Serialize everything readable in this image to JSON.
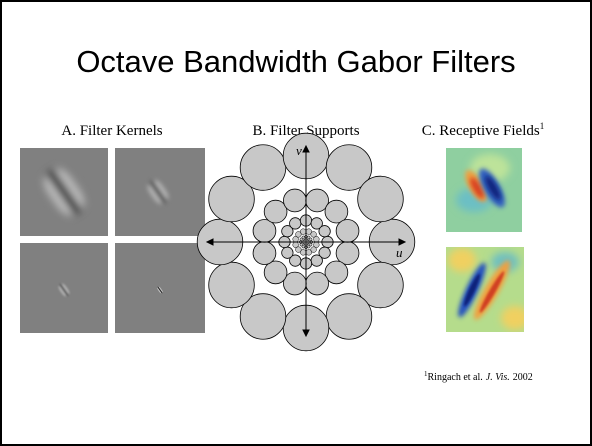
{
  "slide": {
    "title": "Octave Bandwidth Gabor Filters",
    "panels": [
      {
        "label": "A. Filter Kernels"
      },
      {
        "label": "B. Filter Supports",
        "axis_v": "v",
        "axis_u": "u"
      },
      {
        "label": "C. Receptive Fields",
        "footnote_mark": "1"
      }
    ],
    "footnote": {
      "mark": "1",
      "text": "Ringach et al.",
      "journal": "J. Vis.",
      "year": "2002"
    }
  }
}
